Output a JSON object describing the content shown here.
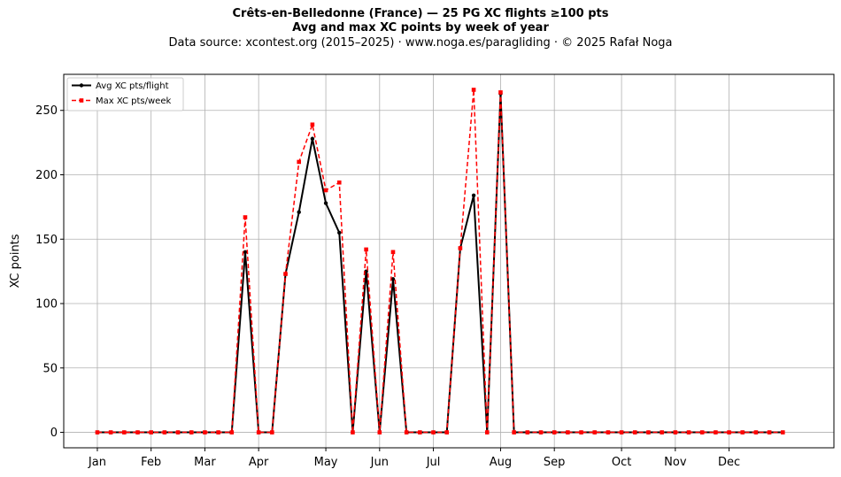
{
  "chart_data": {
    "type": "line",
    "title": "Crêts-en-Belledonne (France)  —  25 PG XC flights ≥100 pts",
    "subtitle": "Avg and max XC points by week of year",
    "source": "Data source: xcontest.org (2015–2025)  ·  www.noga.es/paragliding  ·  © 2025 Rafał Noga",
    "xlabel": "",
    "ylabel": "XC points",
    "ylim": [
      -12,
      278
    ],
    "xlim": [
      -2.5,
      54.8
    ],
    "yticks": [
      0,
      50,
      100,
      150,
      200,
      250
    ],
    "xticks": [
      {
        "week": 0,
        "label": "Jan"
      },
      {
        "week": 4,
        "label": "Feb"
      },
      {
        "week": 8,
        "label": "Mar"
      },
      {
        "week": 12,
        "label": "Apr"
      },
      {
        "week": 17,
        "label": "May"
      },
      {
        "week": 21,
        "label": "Jun"
      },
      {
        "week": 25,
        "label": "Jul"
      },
      {
        "week": 30,
        "label": "Aug"
      },
      {
        "week": 34,
        "label": "Sep"
      },
      {
        "week": 39,
        "label": "Oct"
      },
      {
        "week": 43,
        "label": "Nov"
      },
      {
        "week": 47,
        "label": "Dec"
      }
    ],
    "grid": true,
    "legend_position": "top-left",
    "x": [
      0,
      1,
      2,
      3,
      4,
      5,
      6,
      7,
      8,
      9,
      10,
      11,
      12,
      13,
      14,
      15,
      16,
      17,
      18,
      19,
      20,
      21,
      22,
      23,
      24,
      25,
      26,
      27,
      28,
      29,
      30,
      31,
      32,
      33,
      34,
      35,
      36,
      37,
      38,
      39,
      40,
      41,
      42,
      43,
      44,
      45,
      46,
      47,
      48,
      49,
      50,
      51
    ],
    "series": [
      {
        "name": "Avg XC pts/flight",
        "color": "#000000",
        "style": "solid",
        "marker": "circle",
        "values": [
          0,
          0,
          0,
          0,
          0,
          0,
          0,
          0,
          0,
          0,
          0,
          140,
          0,
          0,
          123,
          171,
          228,
          178,
          155,
          0,
          125,
          0,
          119,
          0,
          0,
          0,
          0,
          143,
          184,
          0,
          263,
          0,
          0,
          0,
          0,
          0,
          0,
          0,
          0,
          0,
          0,
          0,
          0,
          0,
          0,
          0,
          0,
          0,
          0,
          0,
          0,
          0
        ]
      },
      {
        "name": "Max XC pts/week",
        "color": "#ff0000",
        "style": "dashed",
        "marker": "square",
        "values": [
          0,
          0,
          0,
          0,
          0,
          0,
          0,
          0,
          0,
          0,
          0,
          167,
          0,
          0,
          123,
          210,
          239,
          188,
          194,
          0,
          142,
          0,
          140,
          0,
          0,
          0,
          0,
          143,
          266,
          0,
          264,
          0,
          0,
          0,
          0,
          0,
          0,
          0,
          0,
          0,
          0,
          0,
          0,
          0,
          0,
          0,
          0,
          0,
          0,
          0,
          0,
          0
        ]
      }
    ]
  }
}
